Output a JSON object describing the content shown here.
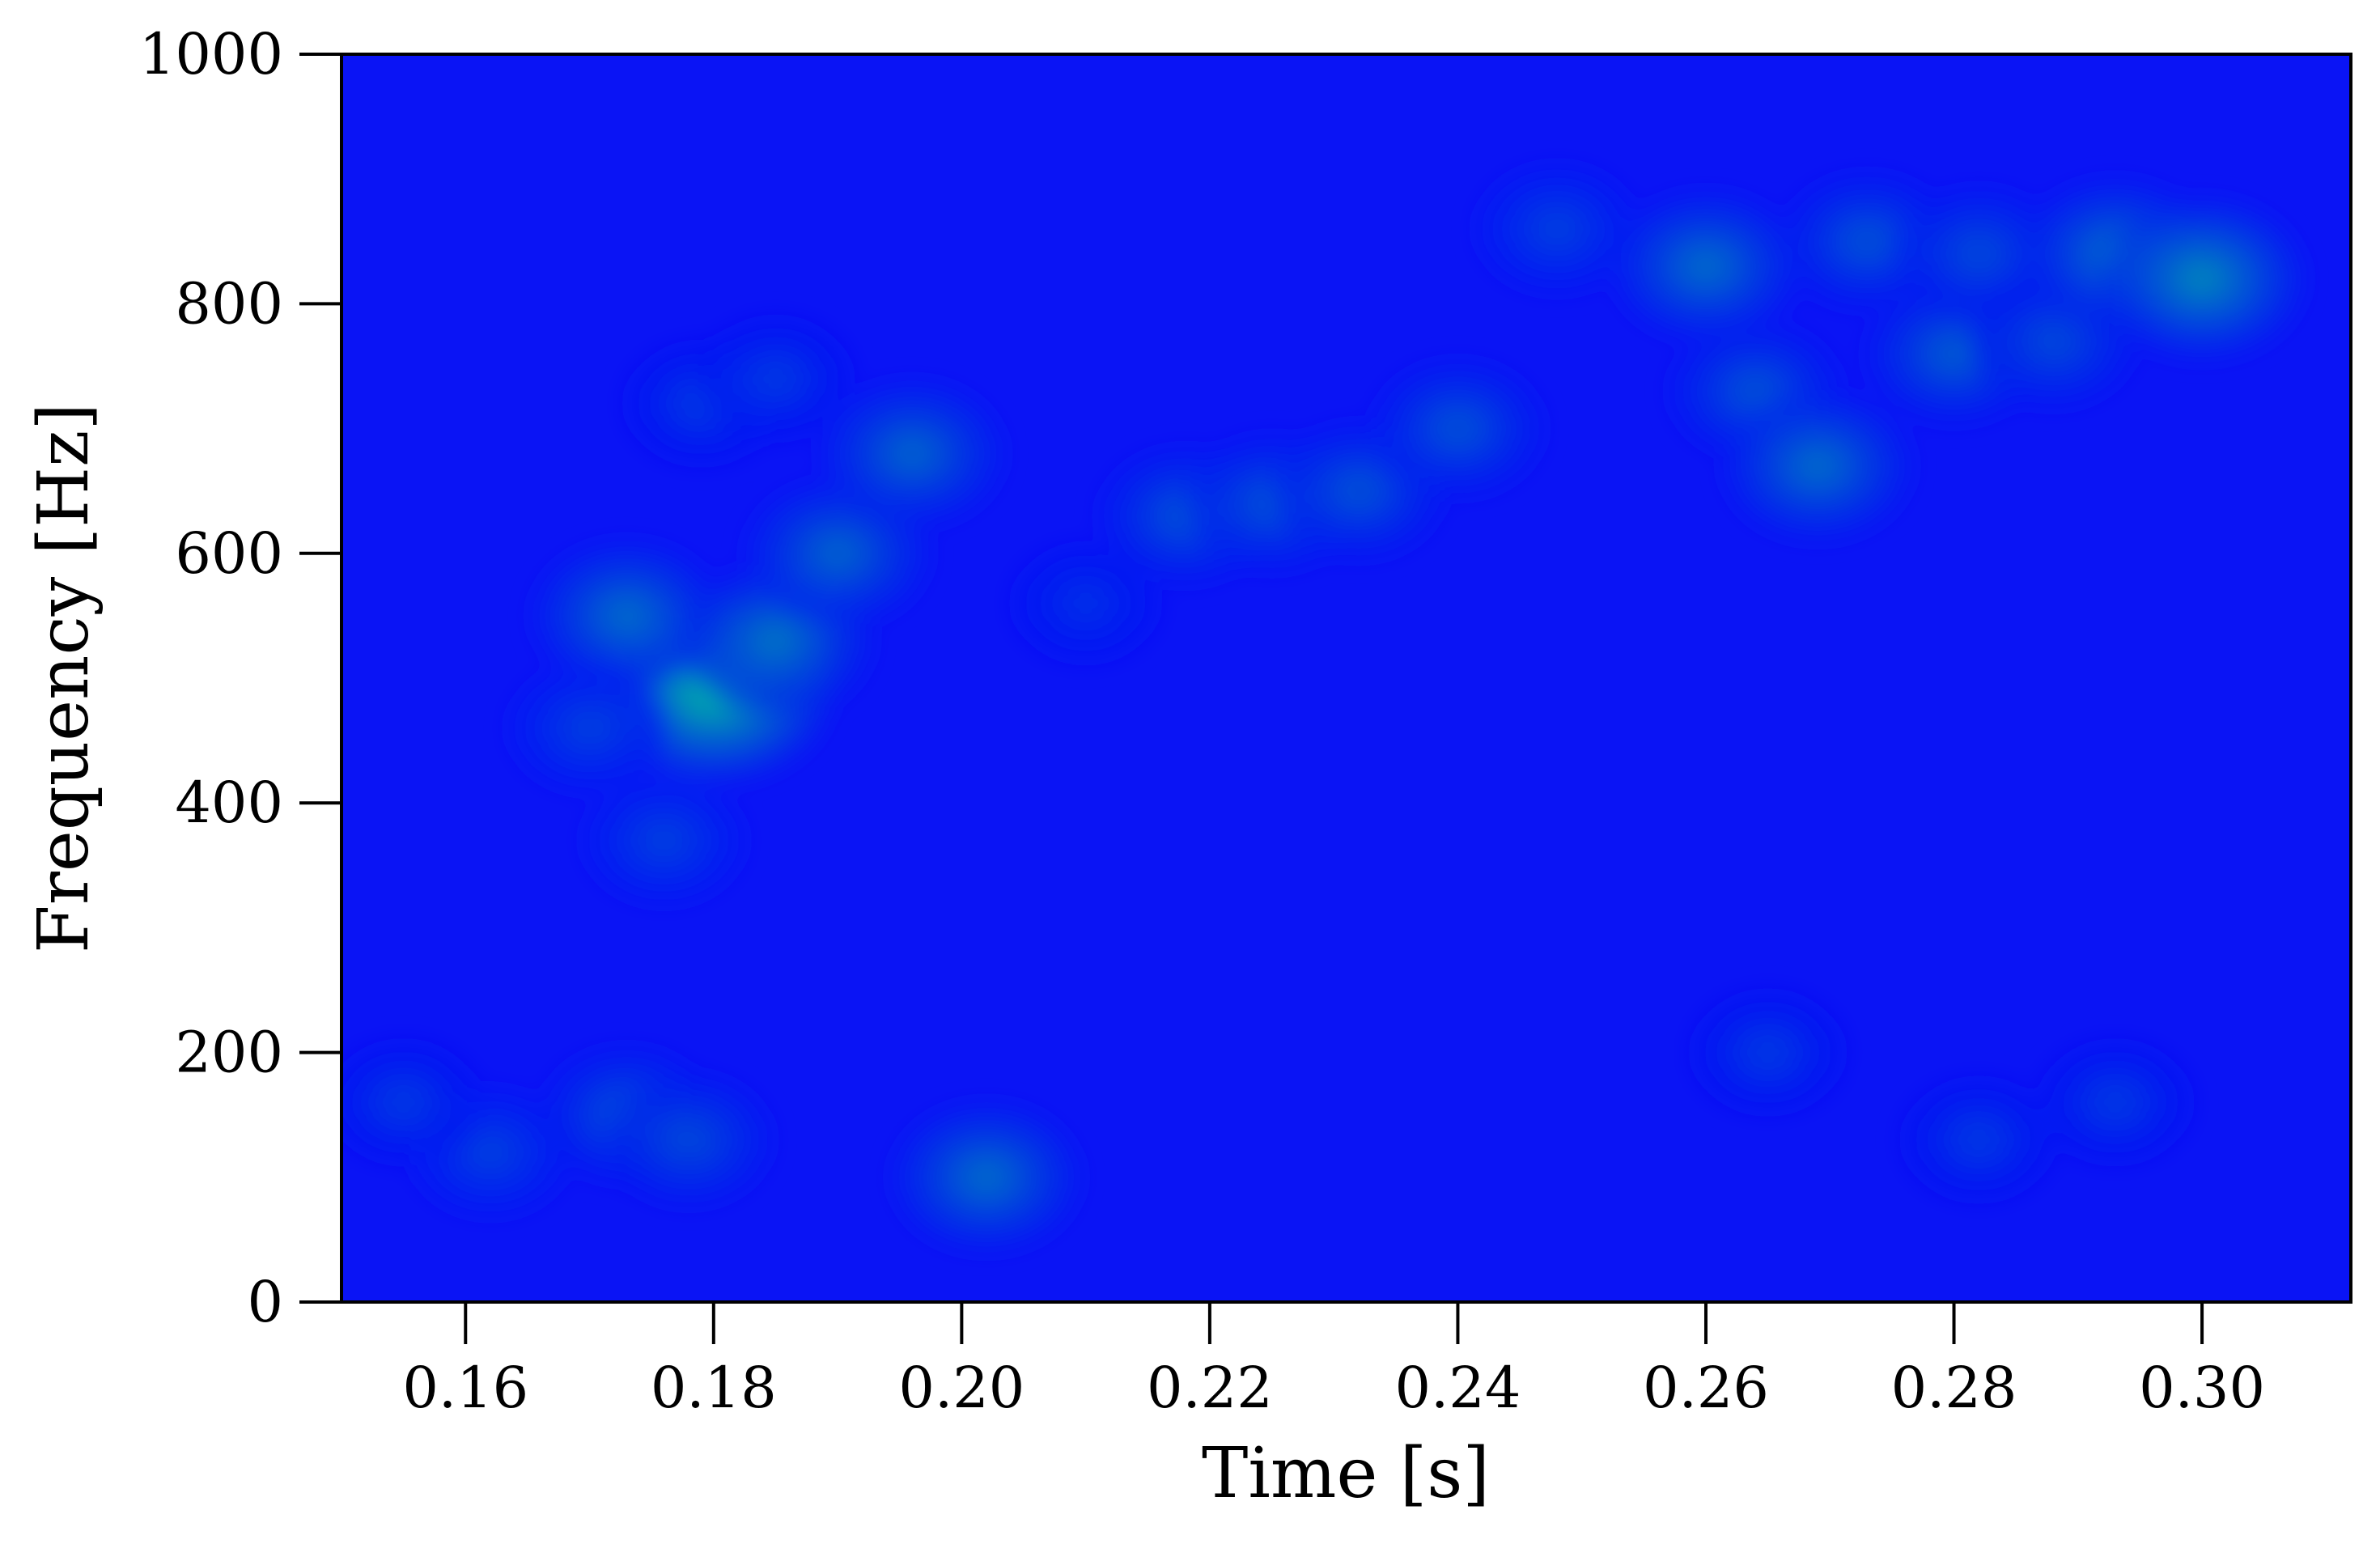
{
  "chart_data": {
    "type": "heatmap",
    "title": "",
    "xlabel": "Time [s]",
    "ylabel": "Frequency [Hz]",
    "xlim": [
      0.15,
      0.312
    ],
    "ylim": [
      0,
      1000
    ],
    "x_ticks": [
      0.16,
      0.18,
      0.2,
      0.22,
      0.24,
      0.26,
      0.28,
      0.3
    ],
    "x_tick_labels": [
      "0.16",
      "0.18",
      "0.20",
      "0.22",
      "0.24",
      "0.26",
      "0.28",
      "0.30"
    ],
    "y_ticks": [
      0,
      200,
      400,
      600,
      800,
      1000
    ],
    "y_tick_labels": [
      "0",
      "200",
      "400",
      "600",
      "800",
      "1000"
    ],
    "grid": false,
    "colormap": "winter",
    "colors": {
      "background": "#0a14f5",
      "low": "#0000ff",
      "high": "#00ff80"
    },
    "intensity_peaks": [
      {
        "time": 0.18,
        "freq": 490,
        "intensity": 1.0
      },
      {
        "time": 0.173,
        "freq": 550,
        "intensity": 0.55
      },
      {
        "time": 0.185,
        "freq": 530,
        "intensity": 0.6
      },
      {
        "time": 0.19,
        "freq": 600,
        "intensity": 0.5
      },
      {
        "time": 0.196,
        "freq": 680,
        "intensity": 0.5
      },
      {
        "time": 0.179,
        "freq": 720,
        "intensity": 0.25
      },
      {
        "time": 0.185,
        "freq": 740,
        "intensity": 0.25
      },
      {
        "time": 0.176,
        "freq": 370,
        "intensity": 0.3
      },
      {
        "time": 0.17,
        "freq": 460,
        "intensity": 0.3
      },
      {
        "time": 0.202,
        "freq": 100,
        "intensity": 0.55
      },
      {
        "time": 0.173,
        "freq": 150,
        "intensity": 0.4
      },
      {
        "time": 0.178,
        "freq": 130,
        "intensity": 0.35
      },
      {
        "time": 0.162,
        "freq": 120,
        "intensity": 0.3
      },
      {
        "time": 0.155,
        "freq": 160,
        "intensity": 0.25
      },
      {
        "time": 0.218,
        "freq": 630,
        "intensity": 0.4
      },
      {
        "time": 0.225,
        "freq": 640,
        "intensity": 0.4
      },
      {
        "time": 0.232,
        "freq": 650,
        "intensity": 0.4
      },
      {
        "time": 0.24,
        "freq": 700,
        "intensity": 0.4
      },
      {
        "time": 0.248,
        "freq": 860,
        "intensity": 0.3
      },
      {
        "time": 0.26,
        "freq": 830,
        "intensity": 0.55
      },
      {
        "time": 0.264,
        "freq": 730,
        "intensity": 0.4
      },
      {
        "time": 0.269,
        "freq": 670,
        "intensity": 0.55
      },
      {
        "time": 0.273,
        "freq": 850,
        "intensity": 0.4
      },
      {
        "time": 0.28,
        "freq": 760,
        "intensity": 0.45
      },
      {
        "time": 0.282,
        "freq": 840,
        "intensity": 0.35
      },
      {
        "time": 0.288,
        "freq": 770,
        "intensity": 0.35
      },
      {
        "time": 0.293,
        "freq": 840,
        "intensity": 0.55
      },
      {
        "time": 0.3,
        "freq": 820,
        "intensity": 0.7
      },
      {
        "time": 0.265,
        "freq": 200,
        "intensity": 0.25
      },
      {
        "time": 0.282,
        "freq": 130,
        "intensity": 0.25
      },
      {
        "time": 0.293,
        "freq": 160,
        "intensity": 0.25
      },
      {
        "time": 0.21,
        "freq": 560,
        "intensity": 0.2
      }
    ]
  }
}
